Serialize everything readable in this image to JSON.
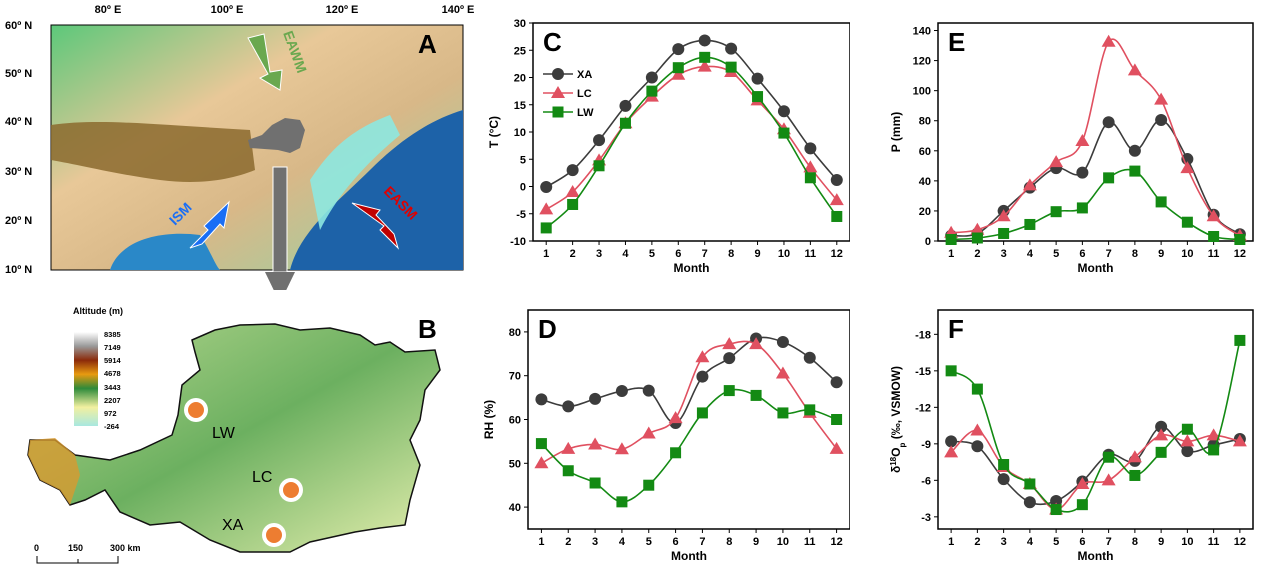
{
  "map_a": {
    "label": "A",
    "lon_ticks": [
      "80º E",
      "100º E",
      "120º E",
      "140º E"
    ],
    "lat_ticks": [
      "60º N",
      "50º N",
      "40º N",
      "30º N",
      "20º N",
      "10º N"
    ],
    "arrows": [
      {
        "name": "EAWM",
        "color": "#6aa84f"
      },
      {
        "name": "ISM",
        "color": "#1a6ef5"
      },
      {
        "name": "EASM",
        "color": "#c00000"
      }
    ]
  },
  "map_b": {
    "label": "B",
    "legend_title": "Altitude (m)",
    "legend_values": [
      "8385",
      "7149",
      "5914",
      "4678",
      "3443",
      "2207",
      "972",
      "-264"
    ],
    "sites": [
      "LW",
      "LC",
      "XA"
    ],
    "scale_labels": [
      "0",
      "150",
      "300 km"
    ],
    "site_color": "#ed7d31"
  },
  "chart_data": [
    {
      "panel": "C",
      "type": "line",
      "xlabel": "Month",
      "ylabel": "T (°C)",
      "x": [
        1,
        2,
        3,
        4,
        5,
        6,
        7,
        8,
        9,
        10,
        11,
        12
      ],
      "ylim": [
        -10,
        30
      ],
      "yticks": [
        -10,
        -5,
        0,
        5,
        10,
        15,
        20,
        25,
        30
      ],
      "legend": "top-left",
      "series": [
        {
          "name": "XA",
          "color": "#3c3c3c",
          "marker": "circle",
          "values": [
            -0.1,
            3.0,
            8.5,
            14.8,
            20.0,
            25.2,
            26.8,
            25.3,
            19.8,
            13.8,
            7.0,
            1.2
          ]
        },
        {
          "name": "LC",
          "color": "#e05060",
          "marker": "triangle",
          "values": [
            -4.2,
            -1.0,
            4.8,
            11.6,
            16.5,
            20.5,
            22.0,
            21.0,
            15.8,
            10.5,
            3.5,
            -2.5
          ]
        },
        {
          "name": "LW",
          "color": "#138a13",
          "marker": "square",
          "values": [
            -7.6,
            -3.3,
            3.8,
            11.6,
            17.5,
            21.8,
            23.7,
            21.9,
            16.5,
            9.8,
            1.6,
            -5.5
          ]
        }
      ]
    },
    {
      "panel": "E",
      "type": "line",
      "xlabel": "Month",
      "ylabel": "P (mm)",
      "x": [
        1,
        2,
        3,
        4,
        5,
        6,
        7,
        8,
        9,
        10,
        11,
        12
      ],
      "ylim": [
        0,
        145
      ],
      "yticks": [
        0,
        20,
        40,
        60,
        80,
        100,
        120,
        140
      ],
      "series": [
        {
          "name": "XA",
          "color": "#3c3c3c",
          "marker": "circle",
          "values": [
            3.5,
            5.0,
            20.0,
            35.5,
            48.5,
            45.5,
            79.0,
            60.0,
            80.5,
            54.5,
            17.5,
            4.5
          ]
        },
        {
          "name": "LC",
          "color": "#e05060",
          "marker": "triangle",
          "values": [
            5.5,
            7.5,
            16.5,
            37.0,
            52.5,
            66.5,
            132.5,
            113.5,
            94.0,
            48.5,
            16.5,
            3.5
          ]
        },
        {
          "name": "LW",
          "color": "#138a13",
          "marker": "square",
          "values": [
            1.0,
            2.0,
            5.0,
            11.0,
            19.5,
            22.0,
            42.0,
            46.5,
            26.0,
            12.5,
            3.0,
            1.0
          ]
        }
      ]
    },
    {
      "panel": "D",
      "type": "line",
      "xlabel": "Month",
      "ylabel": "RH (%)",
      "x": [
        1,
        2,
        3,
        4,
        5,
        6,
        7,
        8,
        9,
        10,
        11,
        12
      ],
      "ylim": [
        35,
        85
      ],
      "yticks": [
        40,
        50,
        60,
        70,
        80
      ],
      "series": [
        {
          "name": "XA",
          "color": "#3c3c3c",
          "marker": "circle",
          "values": [
            64.6,
            63.0,
            64.7,
            66.5,
            66.6,
            59.2,
            69.8,
            74.0,
            78.5,
            77.7,
            74.1,
            68.5
          ]
        },
        {
          "name": "LC",
          "color": "#e05060",
          "marker": "triangle",
          "values": [
            50.0,
            53.3,
            54.3,
            53.2,
            56.8,
            60.3,
            74.2,
            77.2,
            77.2,
            70.5,
            61.5,
            53.3
          ]
        },
        {
          "name": "LW",
          "color": "#138a13",
          "marker": "square",
          "values": [
            54.5,
            48.3,
            45.5,
            41.2,
            45.0,
            52.4,
            61.5,
            66.6,
            65.5,
            61.5,
            62.2,
            60.0
          ]
        }
      ]
    },
    {
      "panel": "F",
      "type": "line",
      "xlabel": "Month",
      "ylabel": "δ18Op (‰, VSMOW)",
      "x": [
        1,
        2,
        3,
        4,
        5,
        6,
        7,
        8,
        9,
        10,
        11,
        12
      ],
      "ylim": [
        -2,
        -20
      ],
      "yticks": [
        -3,
        -6,
        -9,
        -12,
        -15,
        -18
      ],
      "y_inverted": true,
      "series": [
        {
          "name": "XA",
          "color": "#3c3c3c",
          "marker": "circle",
          "values": [
            -9.2,
            -8.8,
            -6.1,
            -4.2,
            -4.3,
            -5.9,
            -8.1,
            -7.6,
            -10.4,
            -8.4,
            -8.9,
            -9.4
          ]
        },
        {
          "name": "LC",
          "color": "#e05060",
          "marker": "triangle",
          "values": [
            -8.3,
            -10.1,
            -7.1,
            -5.7,
            -3.6,
            -5.7,
            -6.0,
            -7.9,
            -9.7,
            -9.2,
            -9.7,
            -9.2
          ]
        },
        {
          "name": "LW",
          "color": "#138a13",
          "marker": "square",
          "values": [
            -15.0,
            -13.5,
            -7.3,
            -5.7,
            -3.6,
            -4.0,
            -7.9,
            -6.4,
            -8.3,
            -10.2,
            -8.5,
            -17.5
          ]
        }
      ]
    }
  ]
}
